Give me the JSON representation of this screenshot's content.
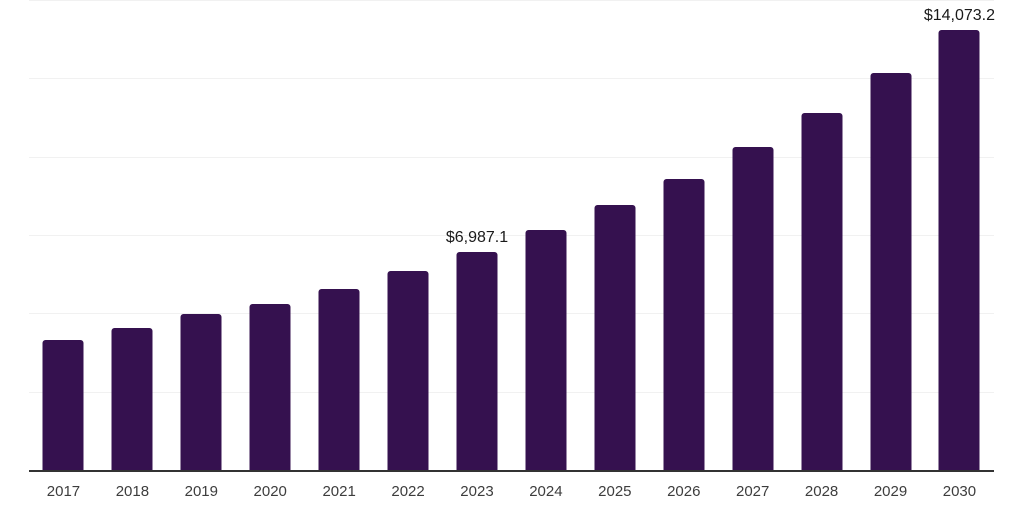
{
  "chart_data": {
    "type": "bar",
    "title": "",
    "xlabel": "",
    "ylabel": "",
    "categories": [
      "2017",
      "2018",
      "2019",
      "2020",
      "2021",
      "2022",
      "2023",
      "2024",
      "2025",
      "2026",
      "2027",
      "2028",
      "2029",
      "2030"
    ],
    "values": [
      4180,
      4550,
      5015,
      5335,
      5800,
      6390,
      6987.1,
      7700,
      8500,
      9335,
      10325,
      11415,
      12715,
      14073.2
    ],
    "data_labels": {
      "2023": "$6,987.1",
      "2030": "$14,073.2"
    },
    "ylim": [
      0,
      15000
    ],
    "gridline_step": 2500,
    "grid": "horizontal-only",
    "legend_position": "none",
    "colors": {
      "bar": "#35114F",
      "axis_line": "#333333",
      "gridline": "#F1F1F1",
      "tick_label": "#3D3D3D",
      "data_label": "#1A1A1A",
      "background": "#FFFFFF"
    }
  }
}
